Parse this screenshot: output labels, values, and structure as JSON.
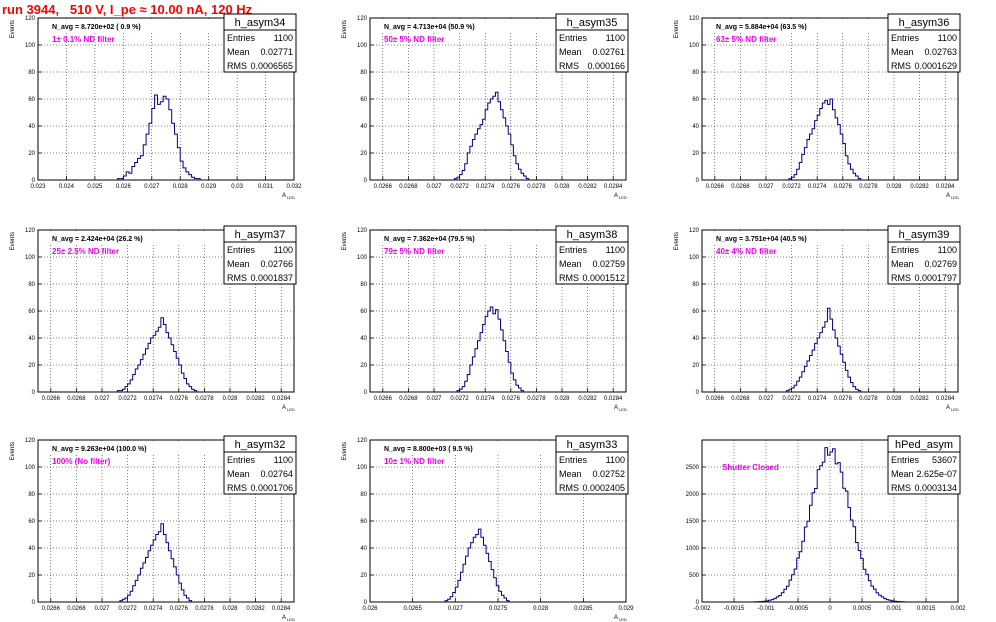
{
  "page": {
    "title": "run 3944,   510 V, I_pe ≈ 10.00 nA, 120 Hz"
  },
  "stats_labels": {
    "entries": "Entries",
    "mean": "Mean",
    "rms": "RMS"
  },
  "chart_data": [
    {
      "type": "histogram",
      "name": "h_asym34",
      "ylabel": "Events",
      "xlabel": "A_LED",
      "nlabel": "N_avg = 8.720e+02 ( 0.9 %)",
      "note": "1± 0.1% ND filter",
      "entries": "1100",
      "mean": "0.02771",
      "rms": "0.0006565",
      "xlim": [
        0.023,
        0.032
      ],
      "ylim": [
        0,
        120
      ],
      "xticks": [
        0.023,
        0.024,
        0.025,
        0.026,
        0.027,
        0.028,
        0.029,
        0.03,
        0.031,
        0.032
      ],
      "xticklabels": [
        "0.023",
        "0.024",
        "0.025",
        "0.026",
        "0.027",
        "0.028",
        "0.029",
        "0.03",
        "0.031",
        "0.032"
      ],
      "yticks": [
        0,
        20,
        40,
        60,
        80,
        100,
        120
      ],
      "bins": {
        "start": 0.0258,
        "width": 0.0001,
        "counts": [
          1,
          1,
          3,
          6,
          5,
          10,
          13,
          16,
          18,
          26,
          34,
          42,
          53,
          63,
          56,
          58,
          62,
          60,
          52,
          42,
          34,
          24,
          14,
          9,
          6,
          4,
          2,
          1,
          1
        ]
      },
      "grid": true
    },
    {
      "type": "histogram",
      "name": "h_asym35",
      "ylabel": "Events",
      "xlabel": "A_LED",
      "nlabel": "N_avg = 4.713e+04 (50.9 %)",
      "note": "50± 5% ND filter",
      "entries": "1100",
      "mean": "0.02761",
      "rms": "0.000166",
      "xlim": [
        0.0265,
        0.0285
      ],
      "ylim": [
        0,
        120
      ],
      "xticks": [
        0.0266,
        0.0268,
        0.027,
        0.0272,
        0.0274,
        0.0276,
        0.0278,
        0.028,
        0.0282,
        0.0284
      ],
      "xticklabels": [
        "0.0266",
        "0.0268",
        "0.027",
        "0.0272",
        "0.0274",
        "0.0276",
        "0.0278",
        "0.028",
        "0.0282",
        "0.0284"
      ],
      "yticks": [
        0,
        20,
        40,
        60,
        80,
        100,
        120
      ],
      "bins": {
        "start": 0.02716,
        "width": 2e-05,
        "counts": [
          1,
          2,
          4,
          7,
          12,
          20,
          25,
          30,
          34,
          38,
          41,
          45,
          52,
          57,
          60,
          62,
          65,
          58,
          52,
          46,
          40,
          34,
          26,
          18,
          12,
          8,
          5,
          3,
          1
        ]
      },
      "grid": true
    },
    {
      "type": "histogram",
      "name": "h_asym36",
      "ylabel": "Events",
      "xlabel": "A_LED",
      "nlabel": "N_avg = 5.884e+04 (63.5 %)",
      "note": "63± 5% ND filter",
      "entries": "1100",
      "mean": "0.02763",
      "rms": "0.0001629",
      "xlim": [
        0.0265,
        0.0285
      ],
      "ylim": [
        0,
        120
      ],
      "xticks": [
        0.0266,
        0.0268,
        0.027,
        0.0272,
        0.0274,
        0.0276,
        0.0278,
        0.028,
        0.0282,
        0.0284
      ],
      "xticklabels": [
        "0.0266",
        "0.0268",
        "0.027",
        "0.0272",
        "0.0274",
        "0.0276",
        "0.0278",
        "0.028",
        "0.0282",
        "0.0284"
      ],
      "yticks": [
        0,
        20,
        40,
        60,
        80,
        100,
        120
      ],
      "bins": {
        "start": 0.02718,
        "width": 2e-05,
        "counts": [
          1,
          2,
          4,
          8,
          13,
          19,
          24,
          30,
          34,
          38,
          44,
          48,
          53,
          57,
          59,
          56,
          60,
          52,
          46,
          41,
          34,
          27,
          18,
          12,
          8,
          5,
          3,
          1
        ]
      },
      "grid": true
    },
    {
      "type": "histogram",
      "name": "h_asym37",
      "ylabel": "Events",
      "xlabel": "A_LED",
      "nlabel": "N_avg = 2.424e+04 (26.2 %)",
      "note": "25± 2.5% ND filter",
      "entries": "1100",
      "mean": "0.02766",
      "rms": "0.0001837",
      "xlim": [
        0.0265,
        0.0285
      ],
      "ylim": [
        0,
        120
      ],
      "xticks": [
        0.0266,
        0.0268,
        0.027,
        0.0272,
        0.0274,
        0.0276,
        0.0278,
        0.028,
        0.0282,
        0.0284
      ],
      "xticklabels": [
        "0.0266",
        "0.0268",
        "0.027",
        "0.0272",
        "0.0274",
        "0.0276",
        "0.0278",
        "0.028",
        "0.0282",
        "0.0284"
      ],
      "yticks": [
        0,
        20,
        40,
        60,
        80,
        100,
        120
      ],
      "bins": {
        "start": 0.02712,
        "width": 2e-05,
        "counts": [
          1,
          1,
          2,
          4,
          6,
          9,
          13,
          17,
          20,
          24,
          28,
          32,
          36,
          40,
          42,
          45,
          48,
          55,
          50,
          44,
          40,
          35,
          30,
          25,
          20,
          14,
          10,
          6,
          4,
          2,
          1
        ]
      },
      "grid": true
    },
    {
      "type": "histogram",
      "name": "h_asym38",
      "ylabel": "Events",
      "xlabel": "A_LED",
      "nlabel": "N_avg = 7.362e+04 (79.5 %)",
      "note": "79± 5% ND filter",
      "entries": "1100",
      "mean": "0.02759",
      "rms": "0.0001512",
      "xlim": [
        0.0265,
        0.0285
      ],
      "ylim": [
        0,
        120
      ],
      "xticks": [
        0.0266,
        0.0268,
        0.027,
        0.0272,
        0.0274,
        0.0276,
        0.0278,
        0.028,
        0.0282,
        0.0284
      ],
      "xticklabels": [
        "0.0266",
        "0.0268",
        "0.027",
        "0.0272",
        "0.0274",
        "0.0276",
        "0.0278",
        "0.028",
        "0.0282",
        "0.0284"
      ],
      "yticks": [
        0,
        20,
        40,
        60,
        80,
        100,
        120
      ],
      "bins": {
        "start": 0.02718,
        "width": 2e-05,
        "counts": [
          1,
          2,
          4,
          8,
          13,
          20,
          26,
          32,
          38,
          44,
          50,
          56,
          60,
          63,
          58,
          61,
          54,
          46,
          38,
          30,
          22,
          14,
          9,
          5,
          3,
          1
        ]
      },
      "grid": true
    },
    {
      "type": "histogram",
      "name": "h_asym39",
      "ylabel": "Events",
      "xlabel": "A_LED",
      "nlabel": "N_avg = 3.751e+04 (40.5 %)",
      "note": "40± 4% ND filter",
      "entries": "1100",
      "mean": "0.02769",
      "rms": "0.0001797",
      "xlim": [
        0.0265,
        0.0285
      ],
      "ylim": [
        0,
        120
      ],
      "xticks": [
        0.0266,
        0.0268,
        0.027,
        0.0272,
        0.0274,
        0.0276,
        0.0278,
        0.028,
        0.0282,
        0.0284
      ],
      "xticklabels": [
        "0.0266",
        "0.0268",
        "0.027",
        "0.0272",
        "0.0274",
        "0.0276",
        "0.0278",
        "0.028",
        "0.0282",
        "0.0284"
      ],
      "yticks": [
        0,
        20,
        40,
        60,
        80,
        100,
        120
      ],
      "bins": {
        "start": 0.02716,
        "width": 2e-05,
        "counts": [
          1,
          2,
          3,
          5,
          8,
          11,
          15,
          19,
          23,
          27,
          31,
          36,
          40,
          44,
          48,
          52,
          62,
          54,
          46,
          40,
          34,
          28,
          22,
          16,
          11,
          7,
          4,
          2,
          1
        ]
      },
      "grid": true
    },
    {
      "type": "histogram",
      "name": "h_asym32",
      "ylabel": "Events",
      "xlabel": "A_LED",
      "nlabel": "N_avg = 9.263e+04 (100.0 %)",
      "note": "100% (No filter)",
      "entries": "1100",
      "mean": "0.02764",
      "rms": "0.0001706",
      "xlim": [
        0.0265,
        0.0285
      ],
      "ylim": [
        0,
        120
      ],
      "xticks": [
        0.0266,
        0.0268,
        0.027,
        0.0272,
        0.0274,
        0.0276,
        0.0278,
        0.028,
        0.0282,
        0.0284
      ],
      "xticklabels": [
        "0.0266",
        "0.0268",
        "0.027",
        "0.0272",
        "0.0274",
        "0.0276",
        "0.0278",
        "0.028",
        "0.0282",
        "0.0284"
      ],
      "yticks": [
        0,
        20,
        40,
        60,
        80,
        100,
        120
      ],
      "bins": {
        "start": 0.02714,
        "width": 2e-05,
        "counts": [
          1,
          2,
          3,
          5,
          8,
          12,
          16,
          20,
          25,
          29,
          33,
          38,
          42,
          46,
          50,
          52,
          58,
          50,
          44,
          38,
          32,
          26,
          20,
          14,
          9,
          5,
          3,
          1
        ]
      },
      "grid": true
    },
    {
      "type": "histogram",
      "name": "h_asym33",
      "ylabel": "Events",
      "xlabel": "A_LED",
      "nlabel": "N_avg = 8.800e+03 ( 9.5 %)",
      "note": "10± 1% ND filter",
      "entries": "1100",
      "mean": "0.02752",
      "rms": "0.0002405",
      "xlim": [
        0.026,
        0.029
      ],
      "ylim": [
        0,
        120
      ],
      "xticks": [
        0.026,
        0.0265,
        0.027,
        0.0275,
        0.028,
        0.0285,
        0.029
      ],
      "xticklabels": [
        "0.026",
        "0.0265",
        "0.027",
        "0.0275",
        "0.028",
        "0.0285",
        "0.029"
      ],
      "yticks": [
        0,
        20,
        40,
        60,
        80,
        100,
        120
      ],
      "bins": {
        "start": 0.02688,
        "width": 3e-05,
        "counts": [
          1,
          2,
          4,
          7,
          11,
          16,
          22,
          28,
          34,
          40,
          44,
          48,
          50,
          54,
          48,
          42,
          36,
          30,
          24,
          18,
          12,
          8,
          5,
          3,
          1
        ]
      },
      "grid": true
    },
    {
      "type": "histogram",
      "name": "hPed_asym",
      "ylabel": "",
      "xlabel": "",
      "nlabel": "",
      "note": "Shutter Closed",
      "entries": "53607",
      "mean": "2.625e-07",
      "rms": "0.0003134",
      "xlim": [
        -0.002,
        0.002
      ],
      "ylim": [
        0,
        3000
      ],
      "xticks": [
        -0.002,
        -0.0015,
        -0.001,
        -0.0005,
        0,
        0.0005,
        0.001,
        0.0015,
        0.002
      ],
      "xticklabels": [
        "-0.002",
        "-0.0015",
        "-0.001",
        "-0.0005",
        "0",
        "0.0005",
        "0.001",
        "0.0015",
        "0.002"
      ],
      "yticks": [
        0,
        500,
        1000,
        1500,
        2000,
        2500
      ],
      "bins": {
        "gaussian": true,
        "mean": 0.0,
        "sigma": 0.000313,
        "peak": 2800,
        "start": -0.0012,
        "width": 4e-05,
        "n": 60
      },
      "grid": true
    }
  ]
}
